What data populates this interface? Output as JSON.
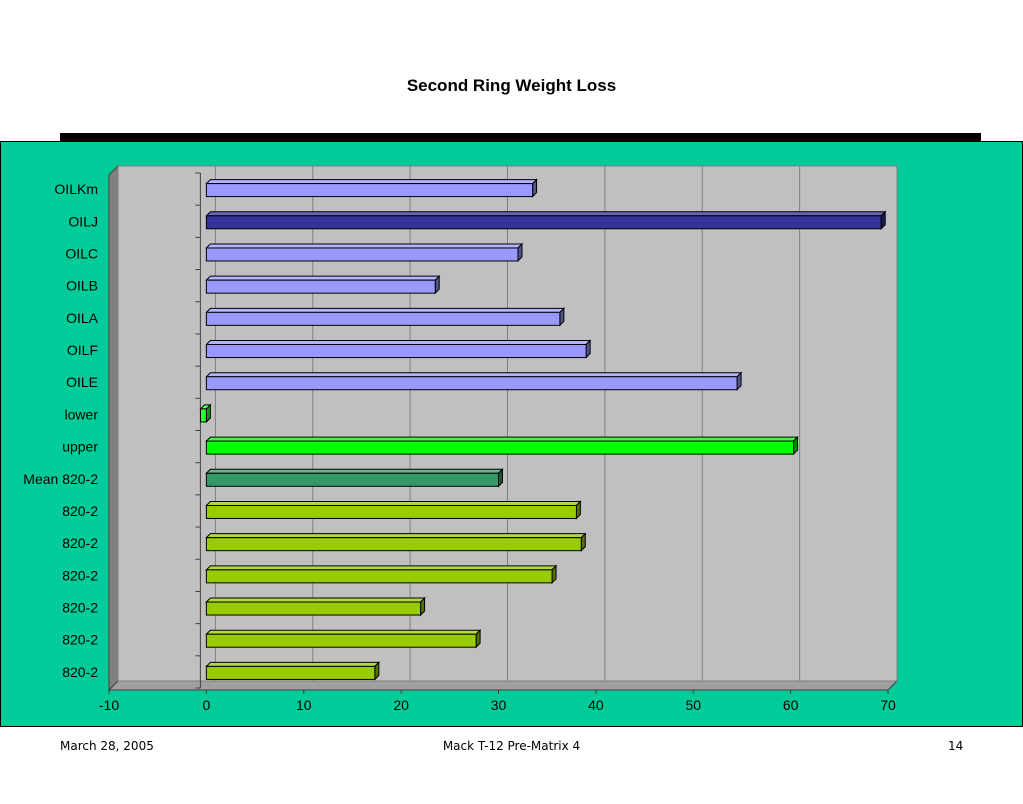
{
  "chart_data": {
    "type": "bar",
    "orientation": "horizontal",
    "title": "Second Ring Weight Loss",
    "xlim": [
      -10,
      70
    ],
    "xticks": [
      -10,
      0,
      10,
      20,
      30,
      40,
      50,
      60,
      70
    ],
    "grid": true,
    "categories": [
      "OILKm",
      "OILJ",
      "OILC",
      "OILB",
      "OILA",
      "OILF",
      "OILE",
      "lower",
      "upper",
      "Mean 820-2",
      "820-2",
      "820-2",
      "820-2",
      "820-2",
      "820-2",
      "820-2"
    ],
    "values": [
      33.5,
      69.3,
      32.0,
      23.5,
      36.3,
      39.0,
      54.5,
      -0.6,
      60.3,
      30.0,
      38.0,
      38.5,
      35.5,
      22.0,
      27.7,
      17.3
    ],
    "colors": [
      "#9999ff",
      "#333399",
      "#9999ff",
      "#9999ff",
      "#9999ff",
      "#9999ff",
      "#9999ff",
      "#33ff33",
      "#00ff00",
      "#339966",
      "#99cc00",
      "#99cc00",
      "#99cc00",
      "#99cc00",
      "#99cc00",
      "#99cc00"
    ]
  },
  "footer": {
    "date": "March 28, 2005",
    "center": "Mack T-12 Pre-Matrix 4",
    "page": "14"
  },
  "colors": {
    "panel_background": "#00cc99",
    "plot_background": "#c0c0c0"
  }
}
